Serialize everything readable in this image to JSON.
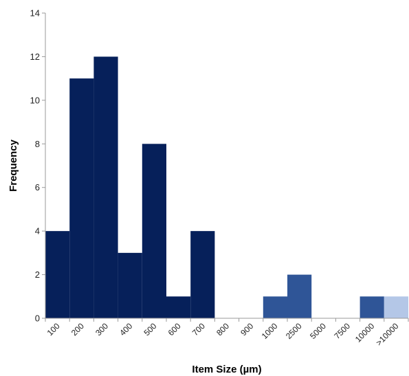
{
  "chart_data": {
    "type": "bar",
    "title": "",
    "xlabel": "Item Size (µm)",
    "ylabel": "Frequency",
    "ylim": [
      0,
      14
    ],
    "yticks": [
      0,
      2,
      4,
      6,
      8,
      10,
      12,
      14
    ],
    "grid": false,
    "legend": "none",
    "categories": [
      "100",
      "200",
      "300",
      "400",
      "500",
      "600",
      "700",
      "800",
      "900",
      "1000",
      "2500",
      "5000",
      "7500",
      "10000",
      ">10000"
    ],
    "values": [
      4,
      11,
      12,
      3,
      8,
      1,
      4,
      0,
      0,
      1,
      2,
      0,
      0,
      1,
      1
    ],
    "bar_colors": [
      "#06205a",
      "#06205a",
      "#06205a",
      "#06205a",
      "#06205a",
      "#06205a",
      "#06205a",
      "#06205a",
      "#06205a",
      "#2f5597",
      "#2f5597",
      "#2f5597",
      "#2f5597",
      "#2f5597",
      "#b4c7e7"
    ]
  }
}
